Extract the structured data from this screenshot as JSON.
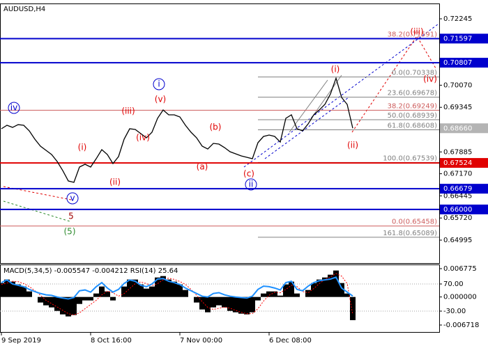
{
  "chart_data": [
    {
      "type": "line",
      "title": "AUDUSD,H4",
      "categories": [
        "9 Sep 2019",
        null,
        null,
        null,
        null,
        null,
        null,
        null,
        null,
        null,
        null,
        null,
        null,
        null,
        null,
        null,
        "8 Oct 16:00",
        null,
        null,
        null,
        null,
        null,
        null,
        null,
        null,
        null,
        null,
        null,
        null,
        null,
        null,
        null,
        "7 Nov 00:00",
        null,
        null,
        null,
        null,
        null,
        null,
        null,
        null,
        null,
        null,
        null,
        null,
        null,
        null,
        null,
        "6 Dec 08:00",
        null,
        null,
        null,
        null,
        null,
        null,
        null,
        null,
        null,
        null,
        null,
        null,
        null,
        null,
        null
      ],
      "series": [
        {
          "color": "#000000",
          "values": [
            0.68643,
            0.68757,
            0.68688,
            0.68779,
            0.68757,
            0.68574,
            0.68301,
            0.68073,
            0.67936,
            0.67799,
            0.67571,
            0.67275,
            0.66933,
            0.66887,
            0.67389,
            0.6748,
            0.67389,
            0.67662,
            0.67959,
            0.67799,
            0.67503,
            0.67731,
            0.68301,
            0.68643,
            0.6862,
            0.68483,
            0.68346,
            0.68529,
            0.68985,
            0.69258,
            0.69099,
            0.69099,
            0.6903,
            0.68757,
            0.68529,
            0.68346,
            0.68073,
            0.67981,
            0.68164,
            0.68141,
            0.68027,
            0.6789,
            0.67822,
            0.67753,
            0.67708,
            0.67662,
            0.68187,
            0.68392,
            0.68437,
            0.68392,
            0.68209,
            0.68985,
            0.69099,
            0.68643,
            0.68574,
            0.68802,
            0.69099,
            0.69258,
            0.69441,
            0.69783,
            0.703,
            0.69669,
            0.69441,
            0.6866
          ]
        }
      ],
      "ylim": [
        0.64243,
        0.72747
      ],
      "yticks": [
        0.72245,
        {
          "value": 0.7007,
          "label": "0.70070"
        },
        0.69345,
        0.67885,
        {
          "value": 0.6717,
          "label": "0.67170"
        },
        0.66445,
        {
          "value": 0.6572,
          "label": "0.65720"
        },
        0.64995
      ],
      "levels": [
        {
          "value": 0.71597,
          "label": "0.71597",
          "color": "#0000cd"
        },
        {
          "value": 0.70807,
          "label": "0.70807",
          "color": "#0000cd"
        },
        {
          "value": 0.67524,
          "label": "0.67524",
          "color": "#e00000"
        },
        {
          "value": 0.66679,
          "label": "0.66679",
          "color": "#0000cd"
        },
        {
          "value": 0.66,
          "label": "0.66000",
          "color": "#0000cd"
        }
      ],
      "current_price": {
        "value": 0.6866,
        "label": "0.68660",
        "color": "#b4b4b4"
      },
      "fibonacci": [
        {
          "value": 0.71591,
          "label": "38.2(0.71591)",
          "color": "#cd5c5c",
          "line": "none"
        },
        {
          "value": 0.70338,
          "label": "0.0(0.70338)",
          "color": "#808080",
          "line": "short"
        },
        {
          "value": 0.69678,
          "label": "23.6(0.69678)",
          "color": "#808080",
          "line": "short"
        },
        {
          "value": 0.69249,
          "label": "38.2(0.69249)",
          "color": "#cd5c5c",
          "line": "full"
        },
        {
          "value": 0.68939,
          "label": "50.0(0.68939)",
          "color": "#808080",
          "line": "short"
        },
        {
          "value": 0.68608,
          "label": "61.8(0.68608)",
          "color": "#808080",
          "line": "short"
        },
        {
          "value": 0.67539,
          "label": "100.0(0.67539)",
          "color": "#808080",
          "line": "short"
        },
        {
          "value": 0.65089,
          "label": "161.8(0.65089)",
          "color": "#808080",
          "line": "short"
        },
        {
          "value": 0.65458,
          "label": "0.0(0.65458)",
          "color": "#cd5c5c",
          "line": "full"
        }
      ],
      "waves": [
        {
          "text": "iv",
          "color": "#0000cd",
          "circled": true
        },
        {
          "text": "v",
          "color": "#0000cd",
          "circled": true
        },
        {
          "text": "5",
          "color": "#a00000",
          "circled": false
        },
        {
          "text": "(5)",
          "color": "#2e8b2e",
          "circled": false
        },
        {
          "text": "(i)",
          "color": "#e00000",
          "circled": false
        },
        {
          "text": "(ii)",
          "color": "#e00000",
          "circled": false
        },
        {
          "text": "(iii)",
          "color": "#e00000",
          "circled": false
        },
        {
          "text": "(iv)",
          "color": "#e00000",
          "circled": false
        },
        {
          "text": "(v)",
          "color": "#e00000",
          "circled": false
        },
        {
          "text": "i",
          "color": "#0000cd",
          "circled": true
        },
        {
          "text": "(a)",
          "color": "#e00000",
          "circled": false
        },
        {
          "text": "(b)",
          "color": "#e00000",
          "circled": false
        },
        {
          "text": "(c)",
          "color": "#e00000",
          "circled": false
        },
        {
          "text": "ii",
          "color": "#0000cd",
          "circled": true
        },
        {
          "text": "(i)",
          "color": "#e00000",
          "circled": false
        },
        {
          "text": "(ii)",
          "color": "#e00000",
          "circled": false
        },
        {
          "text": "(iii)",
          "color": "#e00000",
          "circled": false
        },
        {
          "text": "(iv)",
          "color": "#e00000",
          "circled": false
        }
      ]
    },
    {
      "type": "indicator",
      "title": "MACD(5,34,5) -0.005547 -0.004212 RSI(14) 25.64",
      "ylim": [
        -0.008384,
        0.007775
      ],
      "yticks": [
        0.006775,
        {
          "value": 0,
          "label": "0.000000"
        },
        -0.006718
      ],
      "y2lim": [
        -106.9,
        141.8
      ],
      "y2ticks": [
        {
          "value": 70,
          "label": "70.00"
        },
        {
          "value": -30,
          "label": "-30.00"
        }
      ],
      "series": [
        {
          "kind": "histogram",
          "color": "#000000",
          "values": [
            0.00333,
            0.00417,
            0.00367,
            0.003,
            0.0025,
            0.00133,
            0,
            -0.00133,
            -0.002,
            -0.0025,
            -0.00333,
            -0.00417,
            -0.00466,
            -0.00433,
            -0.00167,
            -0.00083,
            -0.00083,
            0.00083,
            0.0025,
            0.00133,
            -0.00083,
            0,
            0.0025,
            0.00417,
            0.00417,
            0.003,
            0.002,
            0.0025,
            0.00466,
            0.005,
            0.00417,
            0.00367,
            0.003,
            0.00167,
            0,
            -0.00133,
            -0.003,
            -0.00367,
            -0.0025,
            -0.002,
            -0.0025,
            -0.00333,
            -0.00367,
            -0.004,
            -0.00417,
            -0.00367,
            -0.00083,
            0.00083,
            0.00133,
            0.00133,
            0.00033,
            0.003,
            0.00367,
            0.00083,
            0,
            0.00167,
            0.00333,
            0.00417,
            0.00466,
            0.00533,
            0.00633,
            0.00333,
            0.00083,
            -0.005547
          ]
        },
        {
          "kind": "line",
          "dashed": true,
          "color": "#ff0000",
          "values": [
            0.003,
            0.00333,
            0.00375,
            0.00367,
            0.0032,
            0.0025,
            0.0015,
            0.0004,
            -0.0008,
            -0.0016,
            -0.0024,
            -0.0032,
            -0.004,
            -0.0043,
            -0.0038,
            -0.0028,
            -0.0018,
            -0.0008,
            0.0005,
            0.0014,
            0.001,
            0.0002,
            0.0008,
            0.002,
            0.0032,
            0.0036,
            0.0032,
            0.0027,
            0.0032,
            0.0041,
            0.0045,
            0.0042,
            0.0037,
            0.003,
            0.0018,
            0.0004,
            -0.0011,
            -0.0025,
            -0.003,
            -0.0027,
            -0.0024,
            -0.0027,
            -0.0032,
            -0.0037,
            -0.004,
            -0.004,
            -0.0028,
            -0.001,
            0.0004,
            0.0011,
            0.001,
            0.0018,
            0.0028,
            0.0025,
            0.0013,
            0.001,
            0.002,
            0.0032,
            0.0042,
            0.0048,
            0.0056,
            0.005,
            0.0032,
            -0.004212
          ]
        },
        {
          "kind": "line",
          "dashed": false,
          "axis": "y2",
          "color": "#1e90ff",
          "values": [
            75,
            85,
            70,
            65,
            60,
            50,
            42,
            35,
            30,
            28,
            22,
            18,
            15,
            20,
            45,
            48,
            40,
            60,
            75,
            55,
            40,
            50,
            72,
            85,
            80,
            65,
            60,
            70,
            88,
            90,
            80,
            75,
            68,
            55,
            45,
            35,
            25,
            22,
            35,
            38,
            30,
            25,
            22,
            20,
            18,
            25,
            50,
            62,
            60,
            55,
            48,
            75,
            80,
            50,
            45,
            62,
            75,
            82,
            85,
            88,
            95,
            55,
            40,
            25.64
          ]
        }
      ]
    }
  ]
}
